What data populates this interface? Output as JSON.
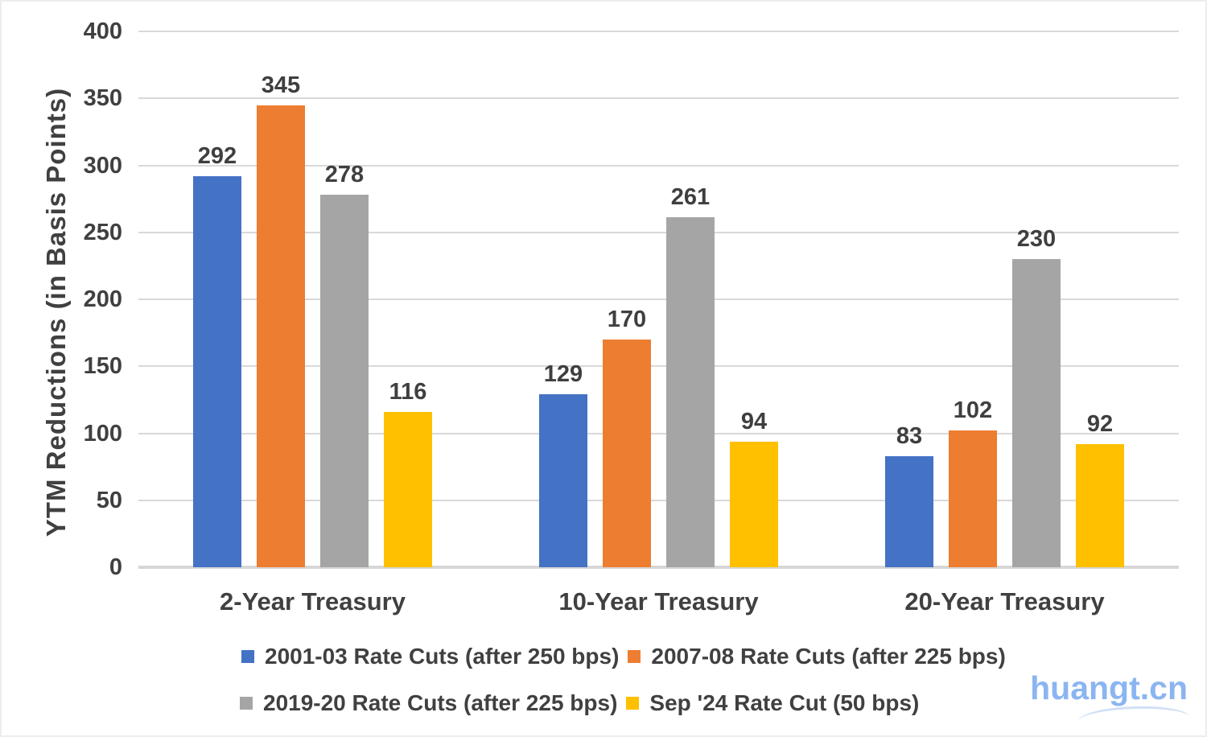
{
  "chart_data": {
    "type": "bar",
    "title": "",
    "xlabel": "",
    "ylabel": "YTM Reductions (in Basis Points)",
    "categories": [
      "2-Year Treasury",
      "10-Year Treasury",
      "20-Year Treasury"
    ],
    "series": [
      {
        "name": "2001-03 Rate Cuts (after 250 bps)",
        "color": "#4472C4",
        "values": [
          292,
          129,
          83
        ]
      },
      {
        "name": "2007-08 Rate Cuts (after 225 bps)",
        "color": "#ED7D31",
        "values": [
          345,
          170,
          102
        ]
      },
      {
        "name": "2019-20 Rate Cuts (after 225 bps)",
        "color": "#A5A5A5",
        "values": [
          278,
          261,
          230
        ]
      },
      {
        "name": "Sep '24 Rate Cut (50 bps)",
        "color": "#FFC000",
        "values": [
          116,
          94,
          92
        ]
      }
    ],
    "ylim": [
      0,
      400
    ],
    "ytick_step": 50,
    "grid": true,
    "legend_position": "bottom",
    "legend_rows": [
      [
        0,
        1
      ],
      [
        2,
        3
      ]
    ],
    "data_labels": true
  },
  "style": {
    "gridline_color": "#d9d9d9",
    "text_color": "#404040",
    "background": "#ffffff"
  },
  "watermark": {
    "text": "huangt.cn",
    "color": "#8BB5F1"
  }
}
